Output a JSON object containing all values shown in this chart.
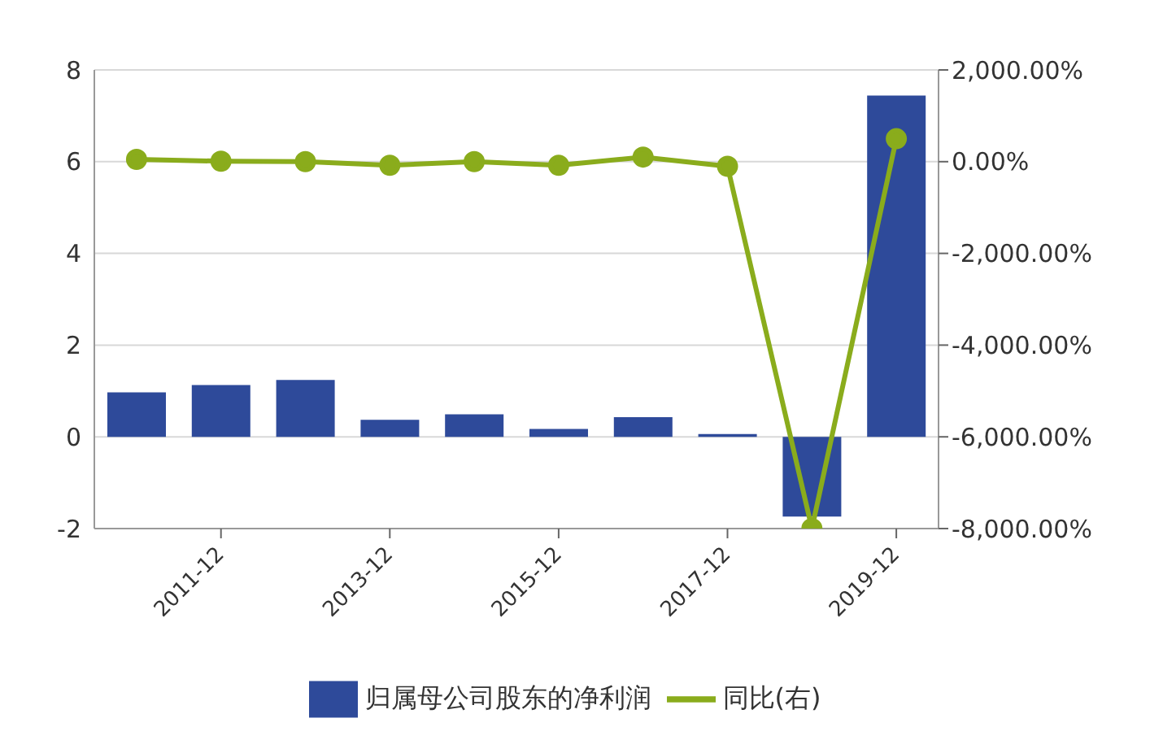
{
  "chart_data": {
    "type": "bar",
    "categories": [
      null,
      "2011-12",
      null,
      "2013-12",
      null,
      "2015-12",
      null,
      "2017-12",
      null,
      "2019-12"
    ],
    "series": [
      {
        "name": "归属母公司股东的净利润",
        "color": "#2e4a9a",
        "values": [
          0.97,
          1.13,
          1.24,
          0.37,
          0.49,
          0.17,
          0.43,
          0.06,
          -1.74,
          7.44
        ]
      },
      {
        "name": "同比(右)",
        "type": "line",
        "axis": "y2",
        "color": "#8aac1c",
        "values": [
          50,
          10,
          0,
          -80,
          0,
          -80,
          100,
          -100,
          -8000,
          500
        ]
      }
    ],
    "ylim": [
      -2,
      8
    ],
    "yticks": [
      -2,
      0,
      2,
      4,
      6,
      8
    ],
    "y2lim": [
      -8000,
      2000
    ],
    "y2ticks": [
      {
        "value": -8000,
        "label": "-8,000.00%"
      },
      {
        "value": -6000,
        "label": "-6,000.00%"
      },
      {
        "value": -4000,
        "label": "-4,000.00%"
      },
      {
        "value": -2000,
        "label": "-2,000.00%"
      },
      {
        "value": 0,
        "label": "0.00%"
      },
      {
        "value": 2000,
        "label": "2,000.00%"
      }
    ],
    "grid": "y",
    "legend": "bottom",
    "marker": "circle"
  }
}
